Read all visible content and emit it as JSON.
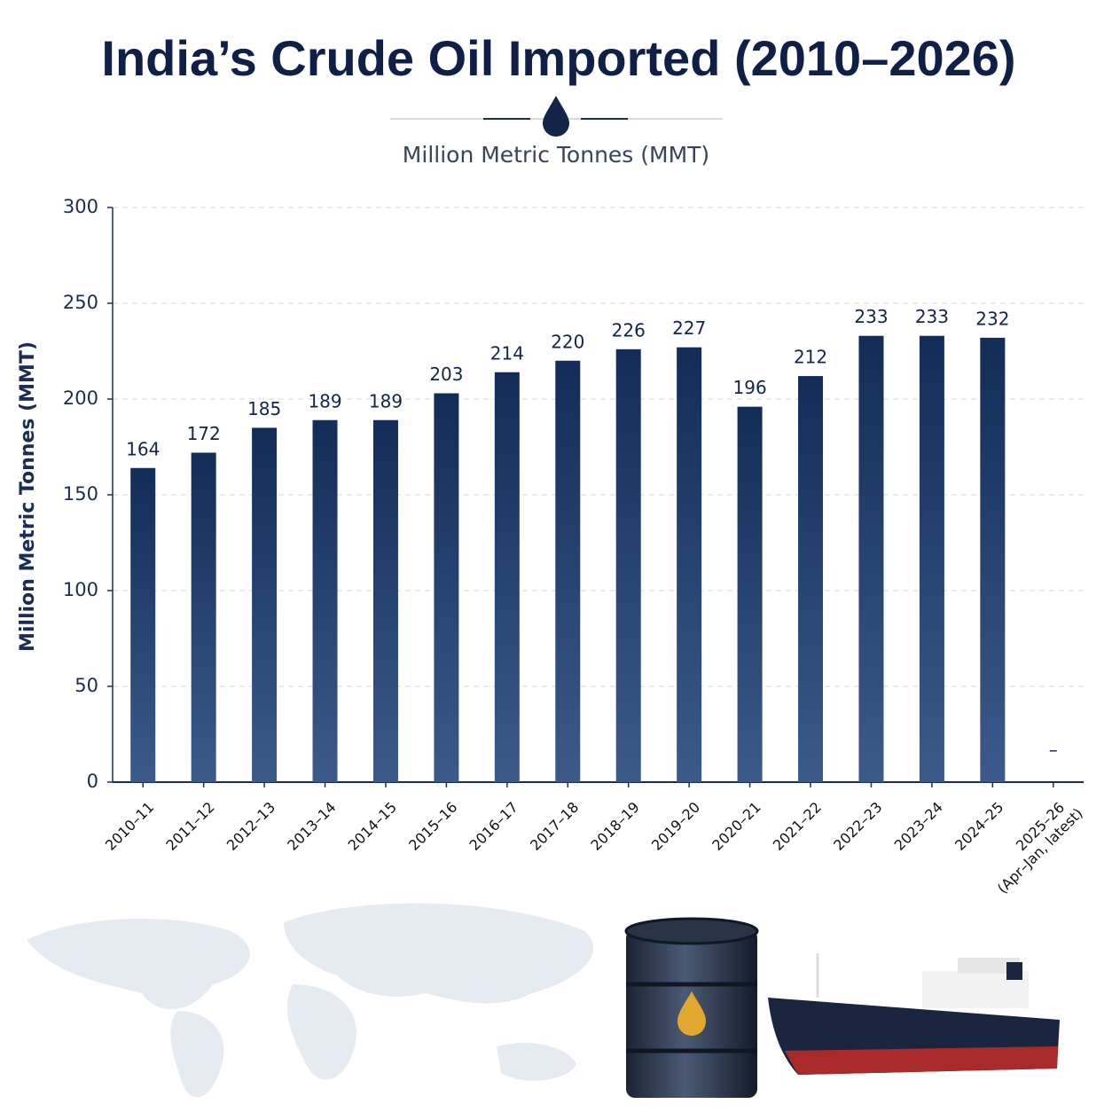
{
  "chart_data": {
    "type": "bar",
    "title": "India’s Crude Oil Imported (2010–2026)",
    "subtitle": "Million Metric Tonnes (MMT)",
    "y_label": "Million Metric Tonnes (MMT)",
    "categories": [
      "2010–11",
      "2011–12",
      "2012–13",
      "2013–14",
      "2014–15",
      "2015–16",
      "2016–17",
      "2017–18",
      "2018–19",
      "2019–20",
      "2020–21",
      "2021–22",
      "2022–23",
      "2023–24",
      "2024–25",
      "2025–26 (Apr–Jan, latest)"
    ],
    "values": [
      164,
      172,
      185,
      189,
      189,
      203,
      214,
      220,
      226,
      227,
      196,
      212,
      233,
      233,
      232,
      null
    ],
    "value_labels": [
      "164",
      "172",
      "185",
      "189",
      "189",
      "203",
      "214",
      "220",
      "226",
      "227",
      "196",
      "212",
      "233",
      "233",
      "232",
      "–"
    ],
    "color": "#1a3563",
    "ylim": [
      0,
      300
    ],
    "yticks": [
      0,
      50,
      100,
      150,
      200,
      250,
      300
    ],
    "grid": true
  }
}
